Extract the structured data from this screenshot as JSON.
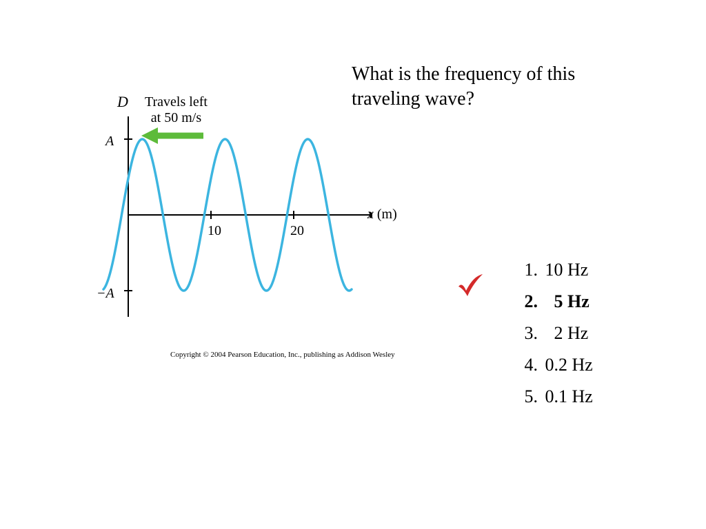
{
  "question": "What is the frequency of this traveling wave?",
  "graph": {
    "type": "line",
    "y_axis_label": "D",
    "y_tick_labels": {
      "pos": "A",
      "neg": "−A"
    },
    "x_axis_label_var": "x",
    "x_axis_label_unit": "(m)",
    "x_ticks": [
      {
        "value": 10,
        "label": "10"
      },
      {
        "value": 20,
        "label": "20"
      }
    ],
    "xlim": [
      -3,
      27
    ],
    "ylim": [
      -1.3,
      1.3
    ],
    "wave": {
      "amplitude": 1,
      "wavelength": 10,
      "phase_at_x0": 60,
      "stroke_color": "#3cb5e0",
      "stroke_width": 3.5
    },
    "axis_color": "#000000",
    "axis_width": 2,
    "annotation": {
      "text_line1": "Travels left",
      "text_line2": "at 50 m/s",
      "arrow_color": "#5dbb3a",
      "arrow_direction": "left"
    }
  },
  "options": [
    {
      "n": "1.",
      "label": "10 Hz",
      "correct": false
    },
    {
      "n": "2.",
      "label": "5 Hz",
      "correct": true
    },
    {
      "n": "3.",
      "label": "2 Hz",
      "correct": false
    },
    {
      "n": "4.",
      "label": "0.2 Hz",
      "correct": false
    },
    {
      "n": "5.",
      "label": "0.1 Hz",
      "correct": false
    }
  ],
  "checkmark_color": "#d42a2a",
  "copyright": "Copyright © 2004 Pearson Education, Inc., publishing as Addison Wesley"
}
